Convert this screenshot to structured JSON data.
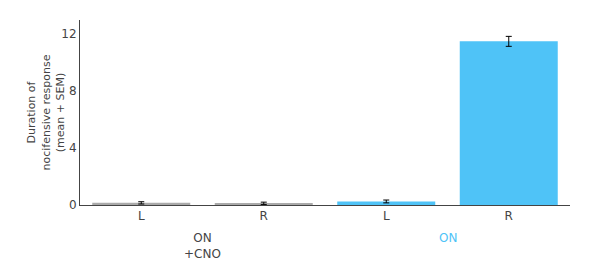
{
  "chart_data": {
    "type": "bar",
    "categories": [
      "L",
      "R",
      "L",
      "R"
    ],
    "values": [
      0.15,
      0.12,
      0.25,
      11.5
    ],
    "errors": [
      0.08,
      0.08,
      0.1,
      0.35
    ],
    "colors": [
      "#aaaaaa",
      "#aaaaaa",
      "#4fc3f7",
      "#4fc3f7"
    ],
    "group_labels": [
      {
        "text": "ON\n+CNO"
      },
      {
        "text": "ON",
        "color": "#4fc3f7"
      }
    ],
    "ylabel": "Duration of\nnocifensive response\n(mean + SEM)",
    "ylim": [
      0,
      13.0
    ],
    "yticks": [
      0,
      4,
      8,
      12
    ],
    "grid": false
  }
}
